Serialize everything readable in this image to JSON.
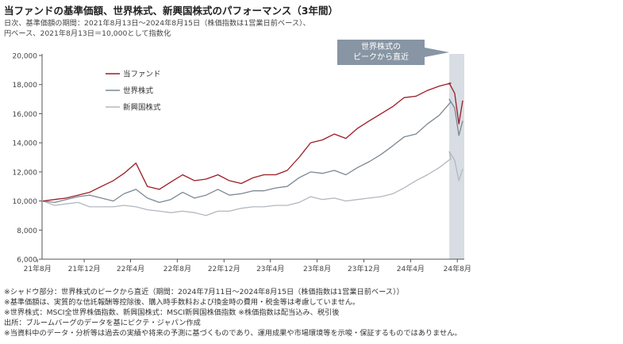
{
  "header": {
    "title": "当ファンドの基準価額、世界株式、新興国株式のパフォーマンス（3年間）",
    "sub_lines": [
      "日次、基準価額の期間：2021年8月13日～2024年8月15日（株価指数は1営業日前ベース）、",
      "円ベース、2021年8月13日＝10,000として指数化"
    ]
  },
  "notes": [
    "※シャドウ部分：世界株式のピークから直近（期間：2024年7月11日～2024年8月15日（株価指数は1営業日前ベース））",
    "※基準価額は、実質的な信託報酬等控除後、購入時手数料および換金時の費用・税金等は考慮していません。",
    "※世界株式：MSCI全世界株価指数、新興国株式：MSCI新興国株価指数 ※株価指数は配当込み、税引後",
    "出所：ブルームバーグのデータを基にピクテ・ジャパン作成",
    "※当資料中のデータ・分析等は過去の実績や将来の予測に基づくものであり、運用成果や市場環境等を示唆・保証するものではありません。"
  ],
  "colors": {
    "fund": "#9b1c24",
    "world": "#7c8894",
    "emerging": "#b2b8bf",
    "shade": "#d7dde3",
    "callout": "#8795a4"
  },
  "chart_data": {
    "type": "line",
    "title": "当ファンドの基準価額、世界株式、新興国株式のパフォーマンス（3年間）",
    "xlabel": "",
    "ylabel": "",
    "x_range": [
      "2021-08-13",
      "2024-08-15"
    ],
    "ylim": [
      6000,
      20000
    ],
    "yticks": [
      "6,000",
      "8,000",
      "10,000",
      "12,000",
      "14,000",
      "16,000",
      "18,000",
      "20,000"
    ],
    "ytick_values": [
      6000,
      8000,
      10000,
      12000,
      14000,
      16000,
      18000,
      20000
    ],
    "xticks": [
      "21年8月",
      "21年12月",
      "22年4月",
      "22年8月",
      "22年12月",
      "23年4月",
      "23年8月",
      "23年12月",
      "24年4月",
      "24年8月"
    ],
    "xtick_dates": [
      "2021-08",
      "2021-12",
      "2022-04",
      "2022-08",
      "2022-12",
      "2023-04",
      "2023-08",
      "2023-12",
      "2024-04",
      "2024-08"
    ],
    "grid": false,
    "legend_position": "top-left",
    "shaded_region": {
      "start": "2024-07-11",
      "end": "2024-08-15",
      "label_lines": [
        "世界株式の",
        "ピークから直近"
      ]
    },
    "series": [
      {
        "name": "当ファンド",
        "x": [
          "2021-08",
          "2021-09",
          "2021-10",
          "2021-11",
          "2021-12",
          "2022-01",
          "2022-02",
          "2022-03",
          "2022-04",
          "2022-05",
          "2022-06",
          "2022-07",
          "2022-08",
          "2022-09",
          "2022-10",
          "2022-11",
          "2022-12",
          "2023-01",
          "2023-02",
          "2023-03",
          "2023-04",
          "2023-05",
          "2023-06",
          "2023-07",
          "2023-08",
          "2023-09",
          "2023-10",
          "2023-11",
          "2023-12",
          "2024-01",
          "2024-02",
          "2024-03",
          "2024-04",
          "2024-05",
          "2024-06",
          "2024-07",
          "2024-07-11",
          "2024-07-25",
          "2024-08-05",
          "2024-08-15"
        ],
        "y": [
          10000,
          10100,
          10200,
          10400,
          10600,
          11000,
          11400,
          11900,
          12600,
          11000,
          10800,
          11300,
          11800,
          11400,
          11500,
          11800,
          11400,
          11200,
          11600,
          11800,
          11800,
          12100,
          13000,
          14000,
          14200,
          14600,
          14300,
          15000,
          15500,
          16000,
          16500,
          17100,
          17200,
          17600,
          17900,
          18100,
          18100,
          17400,
          15300,
          16900
        ]
      },
      {
        "name": "世界株式",
        "x": [
          "2021-08",
          "2021-09",
          "2021-10",
          "2021-11",
          "2021-12",
          "2022-01",
          "2022-02",
          "2022-03",
          "2022-04",
          "2022-05",
          "2022-06",
          "2022-07",
          "2022-08",
          "2022-09",
          "2022-10",
          "2022-11",
          "2022-12",
          "2023-01",
          "2023-02",
          "2023-03",
          "2023-04",
          "2023-05",
          "2023-06",
          "2023-07",
          "2023-08",
          "2023-09",
          "2023-10",
          "2023-11",
          "2023-12",
          "2024-01",
          "2024-02",
          "2024-03",
          "2024-04",
          "2024-05",
          "2024-06",
          "2024-07",
          "2024-07-11",
          "2024-07-25",
          "2024-08-05",
          "2024-08-15"
        ],
        "y": [
          10000,
          9900,
          10100,
          10300,
          10400,
          10200,
          10000,
          10500,
          10800,
          10200,
          9900,
          10100,
          10600,
          10200,
          10400,
          10800,
          10400,
          10500,
          10700,
          10700,
          10900,
          11000,
          11600,
          12000,
          11900,
          12100,
          11800,
          12300,
          12700,
          13200,
          13800,
          14400,
          14600,
          15300,
          15900,
          16800,
          17000,
          16400,
          14500,
          15500
        ]
      },
      {
        "name": "新興国株式",
        "x": [
          "2021-08",
          "2021-09",
          "2021-10",
          "2021-11",
          "2021-12",
          "2022-01",
          "2022-02",
          "2022-03",
          "2022-04",
          "2022-05",
          "2022-06",
          "2022-07",
          "2022-08",
          "2022-09",
          "2022-10",
          "2022-11",
          "2022-12",
          "2023-01",
          "2023-02",
          "2023-03",
          "2023-04",
          "2023-05",
          "2023-06",
          "2023-07",
          "2023-08",
          "2023-09",
          "2023-10",
          "2023-11",
          "2023-12",
          "2024-01",
          "2024-02",
          "2024-03",
          "2024-04",
          "2024-05",
          "2024-06",
          "2024-07",
          "2024-07-11",
          "2024-07-25",
          "2024-08-05",
          "2024-08-15"
        ],
        "y": [
          10000,
          9700,
          9800,
          9900,
          9600,
          9600,
          9600,
          9700,
          9600,
          9400,
          9300,
          9200,
          9300,
          9200,
          9000,
          9300,
          9300,
          9500,
          9600,
          9600,
          9700,
          9700,
          9900,
          10300,
          10100,
          10200,
          10000,
          10100,
          10200,
          10300,
          10500,
          10900,
          11400,
          11800,
          12300,
          12900,
          13400,
          12800,
          11400,
          12200
        ]
      }
    ]
  }
}
